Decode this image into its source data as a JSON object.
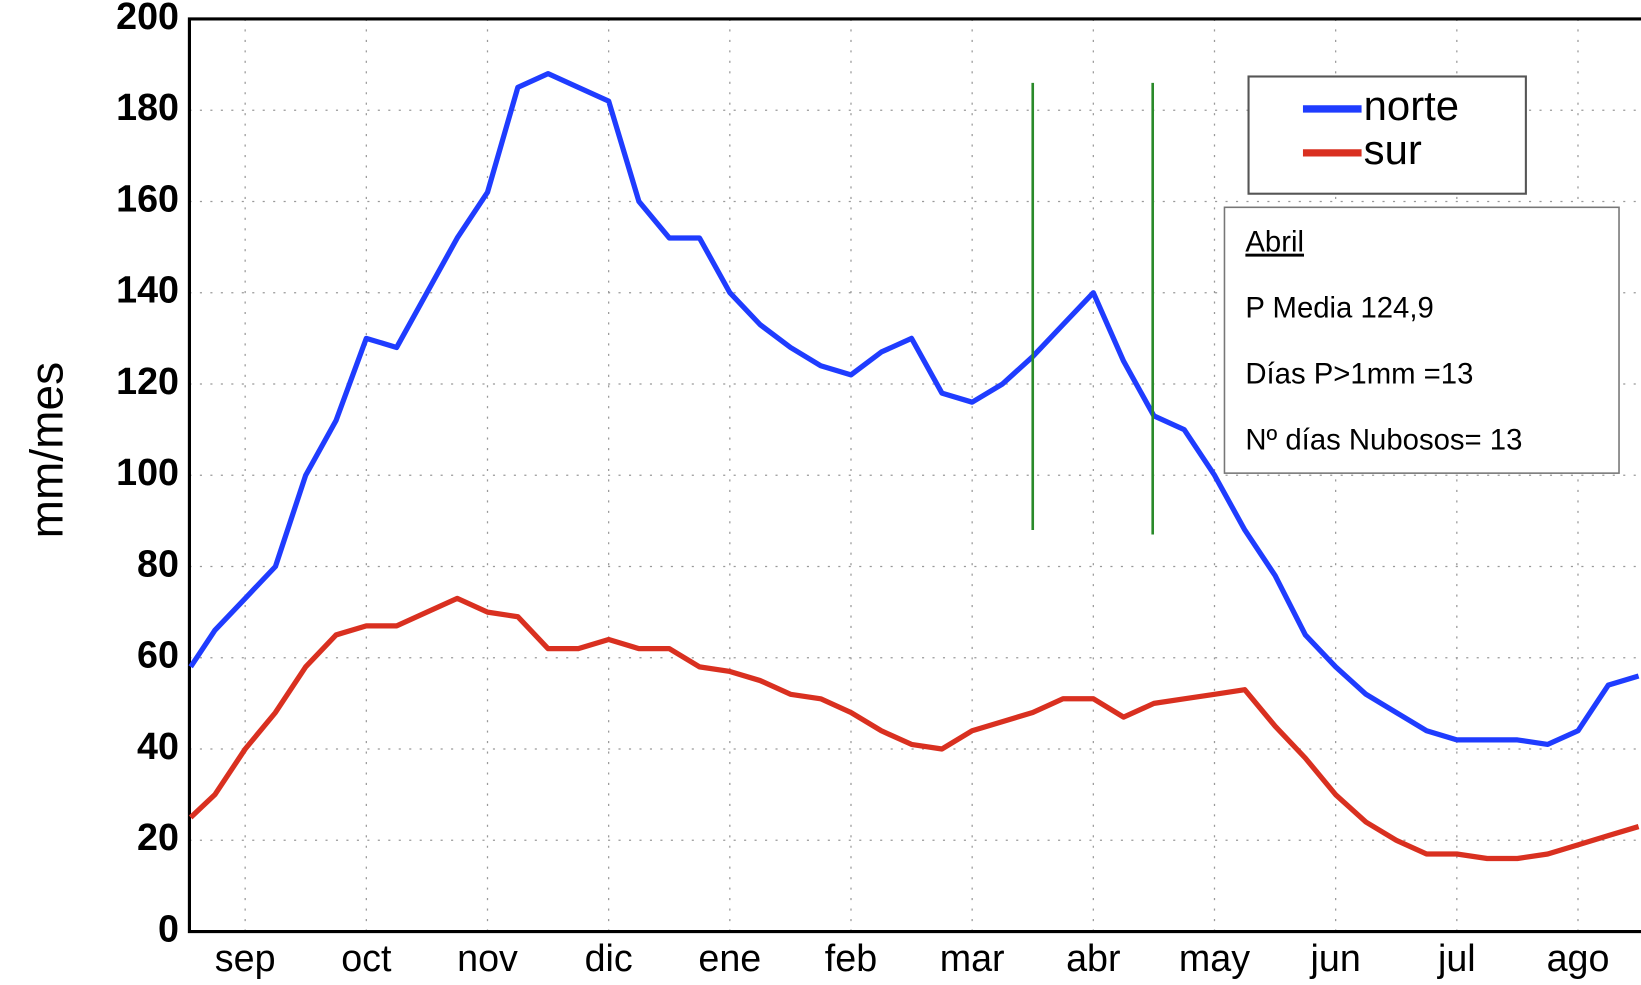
{
  "chart_data": {
    "type": "line",
    "y_label": "mm/mes",
    "x": [
      -0.45,
      -0.25,
      0,
      0.25,
      0.5,
      0.75,
      1,
      1.25,
      1.5,
      1.75,
      2,
      2.25,
      2.5,
      2.75,
      3,
      3.25,
      3.5,
      3.75,
      4,
      4.25,
      4.5,
      4.75,
      5,
      5.25,
      5.5,
      5.75,
      6,
      6.25,
      6.5,
      6.75,
      7,
      7.25,
      7.5,
      7.75,
      8,
      8.25,
      8.5,
      8.75,
      9,
      9.25,
      9.5,
      9.75,
      10,
      10.25,
      10.5,
      10.75,
      11,
      11.25,
      11.5
    ],
    "xlim": [
      -0.46,
      11.52
    ],
    "xticks": [
      {
        "value": 0,
        "label": "sep"
      },
      {
        "value": 1,
        "label": "oct"
      },
      {
        "value": 2,
        "label": "nov"
      },
      {
        "value": 3,
        "label": "dic"
      },
      {
        "value": 4,
        "label": "ene"
      },
      {
        "value": 5,
        "label": "feb"
      },
      {
        "value": 6,
        "label": "mar"
      },
      {
        "value": 7,
        "label": "abr"
      },
      {
        "value": 8,
        "label": "may"
      },
      {
        "value": 9,
        "label": "jun"
      },
      {
        "value": 10,
        "label": "jul"
      },
      {
        "value": 11,
        "label": "ago"
      }
    ],
    "ylim": [
      0,
      200
    ],
    "yticks": [
      0,
      20,
      40,
      60,
      80,
      100,
      120,
      140,
      160,
      180,
      200
    ],
    "grid": true,
    "legend": "upper right",
    "series": [
      {
        "name": "norte",
        "color": "#1f3cff",
        "values": [
          58,
          66,
          73,
          80,
          100,
          112,
          130,
          128,
          140,
          152,
          162,
          185,
          188,
          185,
          182,
          160,
          152,
          152,
          140,
          133,
          128,
          124,
          122,
          127,
          130,
          118,
          116,
          120,
          126,
          133,
          140,
          125,
          113,
          110,
          100,
          88,
          78,
          65,
          58,
          52,
          48,
          44,
          42,
          42,
          42,
          41,
          44,
          54,
          56
        ]
      },
      {
        "name": "sur",
        "color": "#d93020",
        "values": [
          25,
          30,
          40,
          48,
          58,
          65,
          67,
          67,
          70,
          73,
          70,
          69,
          62,
          62,
          64,
          62,
          62,
          58,
          57,
          55,
          52,
          51,
          48,
          44,
          41,
          40,
          44,
          46,
          48,
          51,
          51,
          47,
          50,
          51,
          52,
          53,
          45,
          38,
          30,
          24,
          20,
          17,
          17,
          16,
          16,
          17,
          19,
          21,
          23
        ]
      }
    ],
    "vlines": [
      {
        "x": 6.5,
        "ymin": 88,
        "ymax": 186,
        "color": "#2a8a2a"
      },
      {
        "x": 7.49,
        "ymin": 87,
        "ymax": 186,
        "color": "#2a8a2a"
      }
    ],
    "annotation": [
      "Abril",
      "P Media 124,9",
      "Días P>1mm =13",
      "Nº días Nubosos= 13"
    ]
  }
}
